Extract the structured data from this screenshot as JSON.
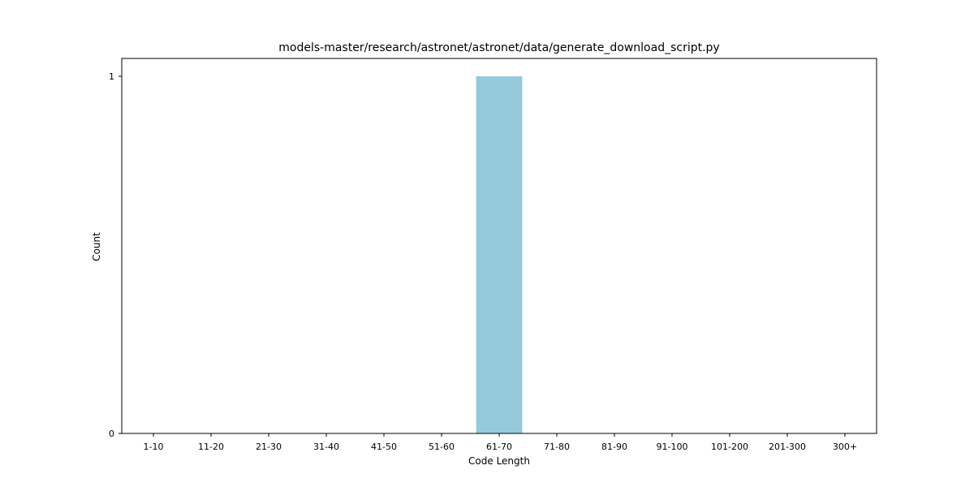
{
  "chart_data": {
    "type": "bar",
    "title": "models-master/research/astronet/astronet/data/generate_download_script.py",
    "xlabel": "Code Length",
    "ylabel": "Count",
    "categories": [
      "1-10",
      "11-20",
      "21-30",
      "31-40",
      "41-50",
      "51-60",
      "61-70",
      "71-80",
      "81-90",
      "91-100",
      "101-200",
      "201-300",
      "300+"
    ],
    "values": [
      0,
      0,
      0,
      0,
      0,
      0,
      1,
      0,
      0,
      0,
      0,
      0,
      0
    ],
    "ylim": [
      0,
      1.05
    ],
    "yticks": [
      0,
      1
    ],
    "grid": false,
    "bar_color": "#96c9dc"
  }
}
